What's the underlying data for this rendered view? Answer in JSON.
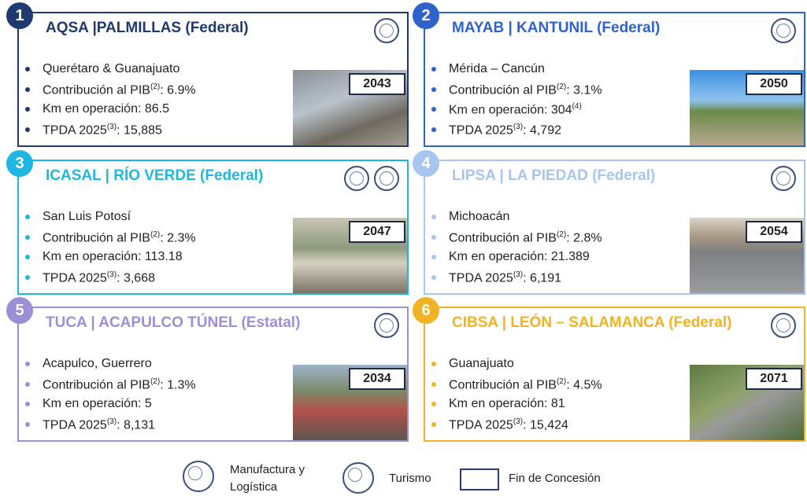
{
  "cards": [
    {
      "number": "1",
      "title": "AQSA |PALMILLAS (Federal)",
      "color": "#1f3a6e",
      "year": "2043",
      "bullets": [
        [
          {
            "text": "Querétaro & Guanajuato"
          }
        ],
        [
          {
            "text": "Contribución al PIB"
          },
          {
            "sup": "(2)"
          },
          {
            "text": ": 6.9%"
          }
        ],
        [
          {
            "text": "Km en operación: 86.5"
          }
        ],
        [
          {
            "text": "TPDA 2025"
          },
          {
            "sup": "(3)"
          },
          {
            "text": ": 15,885"
          }
        ]
      ]
    },
    {
      "number": "2",
      "title": "MAYAB | KANTUNIL (Federal)",
      "color": "#2f63c9",
      "year": "2050",
      "bullets": [
        [
          {
            "text": "Mérida – Cancún"
          }
        ],
        [
          {
            "text": "Contribución al PIB"
          },
          {
            "sup": "(2)"
          },
          {
            "text": ": 3.1%"
          }
        ],
        [
          {
            "text": "Km en operación: 304"
          },
          {
            "sup": "(4)"
          }
        ],
        [
          {
            "text": "TPDA 2025"
          },
          {
            "sup": "(3)"
          },
          {
            "text": ": 4,792"
          }
        ]
      ]
    },
    {
      "number": "3",
      "title": "ICASAL | RÍO VERDE (Federal)",
      "color": "#1fb6e3",
      "year": "2047",
      "bullets": [
        [
          {
            "text": "San Luis Potosí"
          }
        ],
        [
          {
            "text": "Contribución al PIB"
          },
          {
            "sup": "(2)"
          },
          {
            "text": ": 2.3%"
          }
        ],
        [
          {
            "text": "Km en operación: 113.18"
          }
        ],
        [
          {
            "text": "TPDA 2025"
          },
          {
            "sup": "(3)"
          },
          {
            "text": ": 3,668"
          }
        ]
      ]
    },
    {
      "number": "4",
      "title": "LIPSA | LA PIEDAD (Federal)",
      "color": "#a7c5ee",
      "year": "2054",
      "bullets": [
        [
          {
            "text": "Michoacán"
          }
        ],
        [
          {
            "text": "Contribución al PIB"
          },
          {
            "sup": "(2)"
          },
          {
            "text": ": 2.8%"
          }
        ],
        [
          {
            "text": "Km en operación: 21.389"
          }
        ],
        [
          {
            "text": "TPDA 2025"
          },
          {
            "sup": "(3)"
          },
          {
            "text": ": 6,191"
          }
        ]
      ]
    },
    {
      "number": "5",
      "title": "TUCA | ACAPULCO TÚNEL (Estatal)",
      "color": "#9d8fd3",
      "year": "2034",
      "bullets": [
        [
          {
            "text": "Acapulco, Guerrero"
          }
        ],
        [
          {
            "text": "Contribución al PIB"
          },
          {
            "sup": "(2)"
          },
          {
            "text": ": 1.3%"
          }
        ],
        [
          {
            "text": "Km en operación: 5"
          }
        ],
        [
          {
            "text": "TPDA 2025"
          },
          {
            "sup": "(3)"
          },
          {
            "text": ": 8,131"
          }
        ]
      ]
    },
    {
      "number": "6",
      "title": "CIBSA | LEÓN – SALAMANCA (Federal)",
      "color": "#f0b324",
      "year": "2071",
      "bullets": [
        [
          {
            "text": "Guanajuato"
          }
        ],
        [
          {
            "text": "Contribución al PIB"
          },
          {
            "sup": "(2)"
          },
          {
            "text": ": 4.5%"
          }
        ],
        [
          {
            "text": "Km en operación: 81"
          }
        ],
        [
          {
            "text": "TPDA 2025"
          },
          {
            "sup": "(3)"
          },
          {
            "text": ": 15,424"
          }
        ]
      ]
    }
  ],
  "legend": {
    "manufactura": [
      "Manufactura y",
      "Logística"
    ],
    "turismo": "Turismo",
    "concesion": "Fin de Concesión"
  }
}
